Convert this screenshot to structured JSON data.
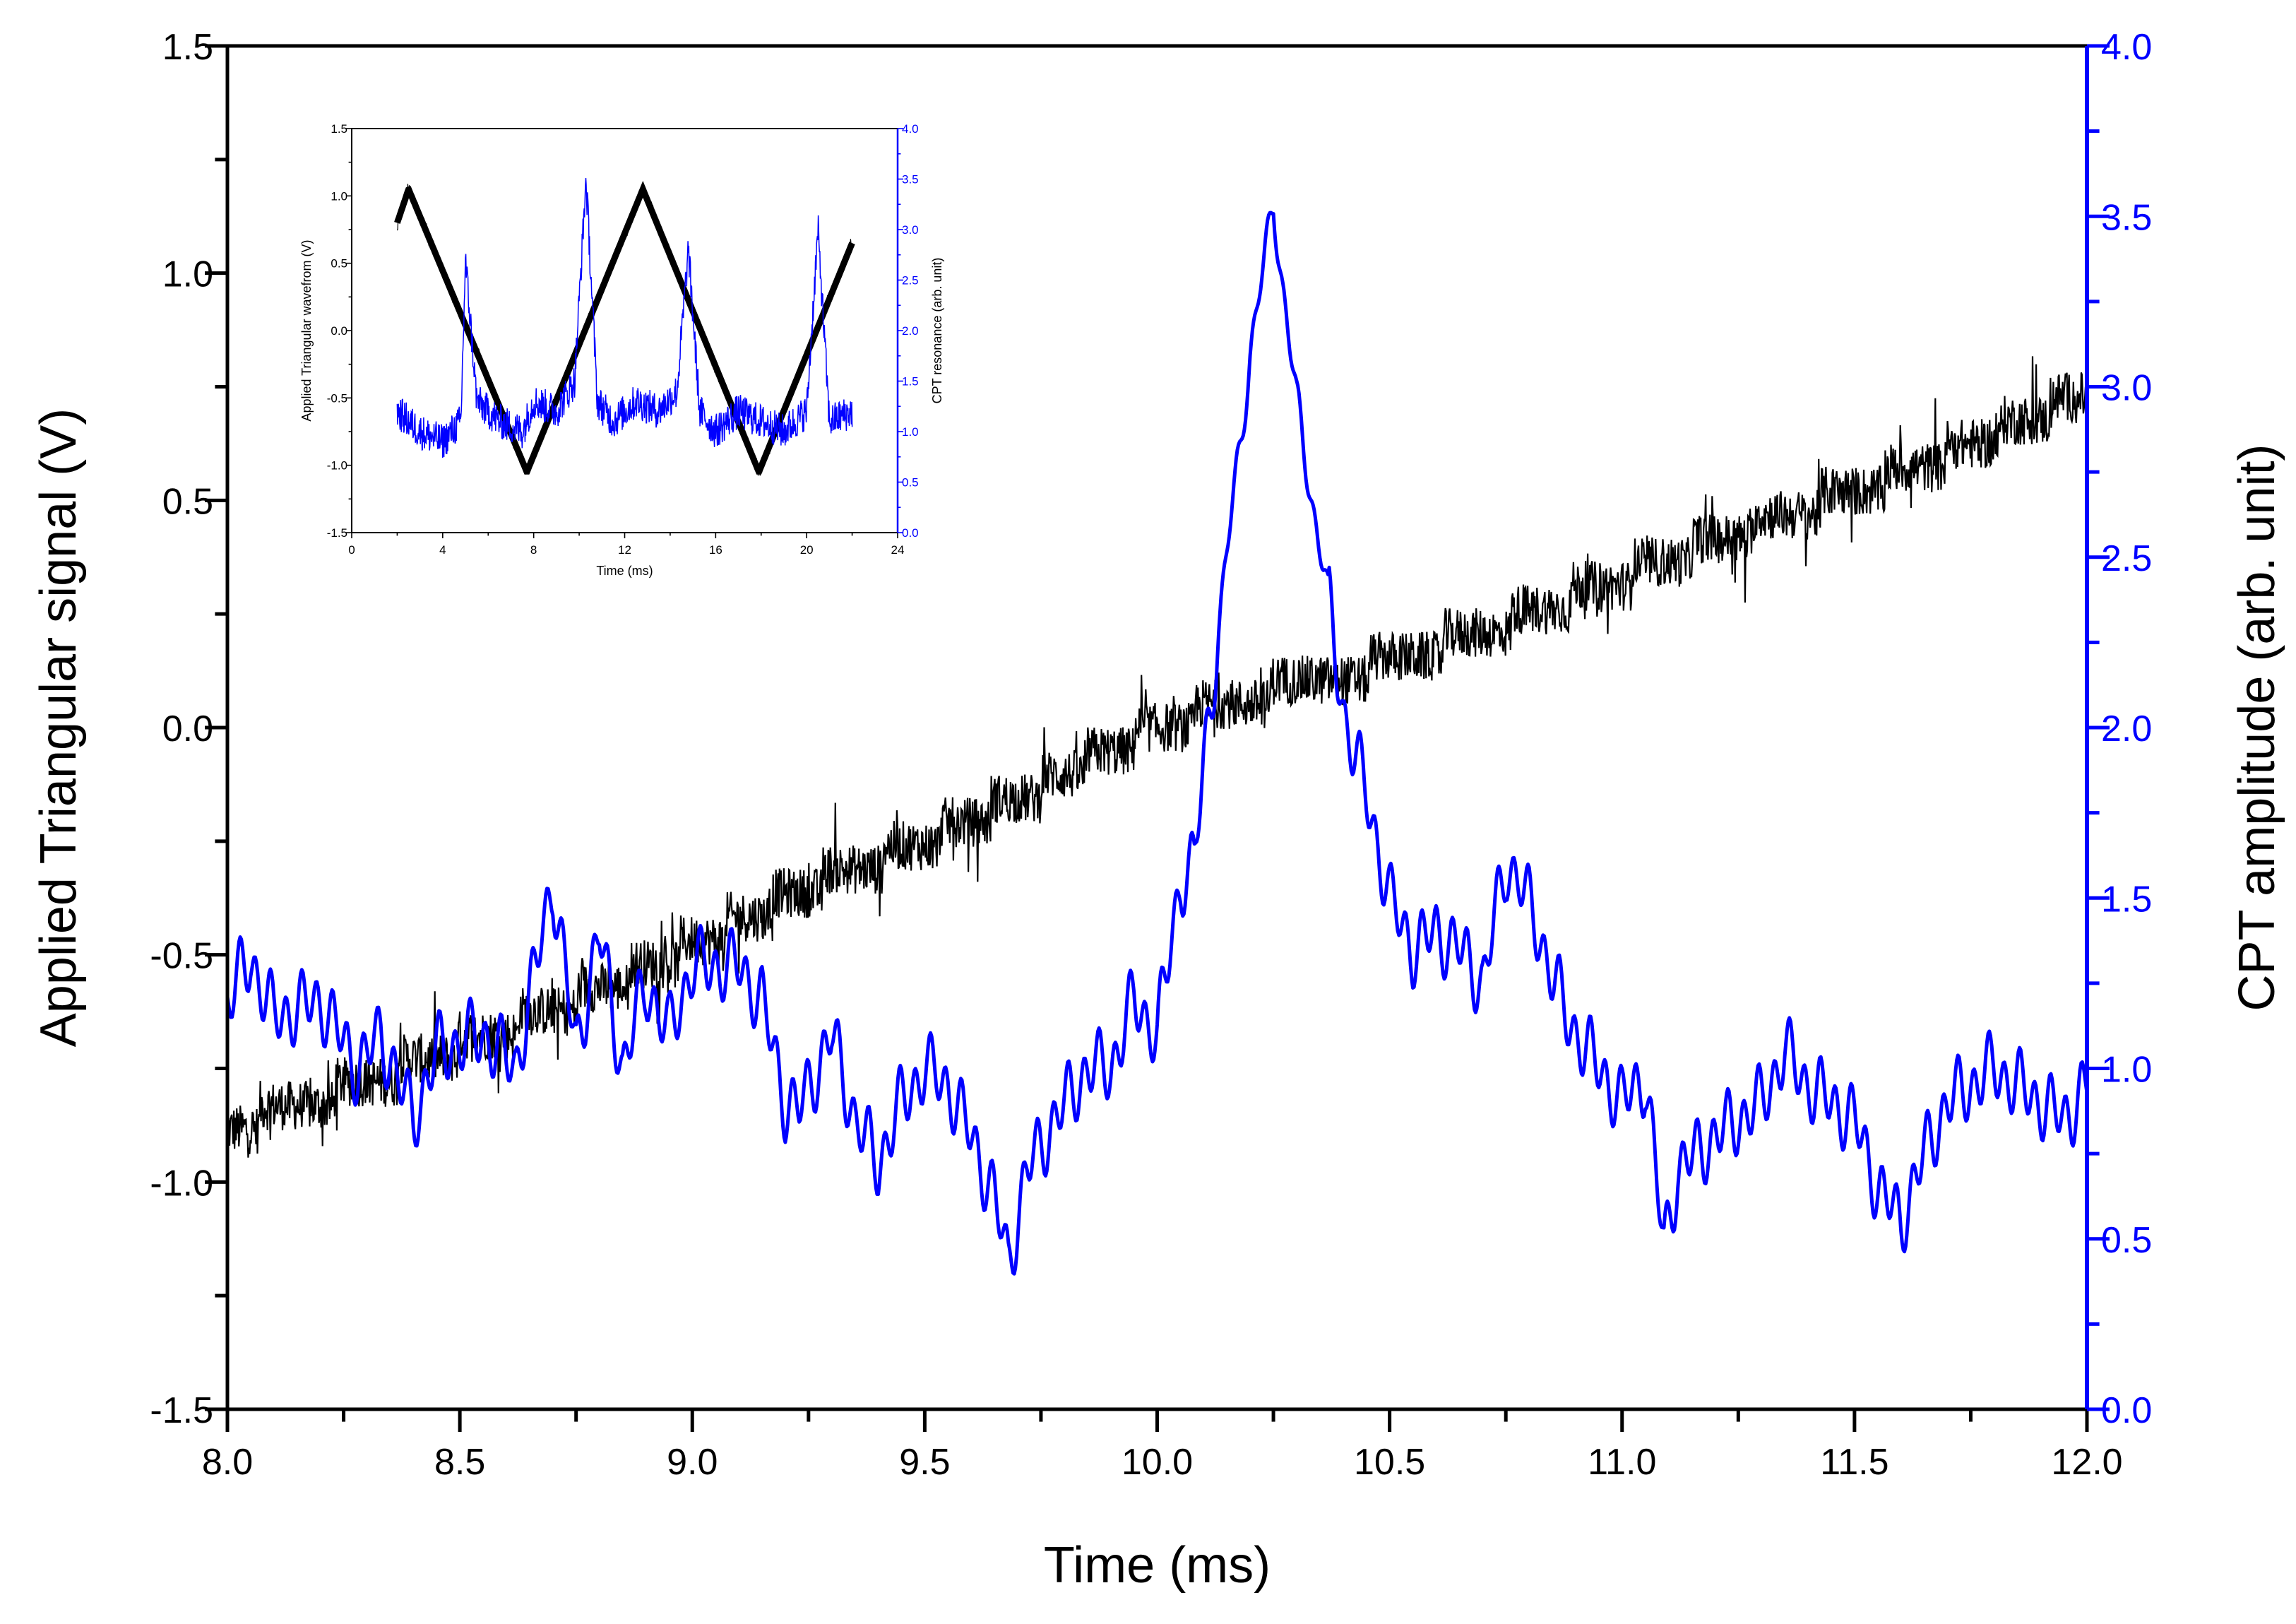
{
  "colors": {
    "black_series": "#000000",
    "blue_series": "#0000ff",
    "axis": "#000000",
    "right_axis": "#0000ff",
    "background": "#ffffff"
  },
  "chart_data": [
    {
      "id": "main",
      "type": "line",
      "title": "",
      "xlabel": "Time (ms)",
      "ylabel_left": "Applied Triangular signal (V)",
      "ylabel_right": "CPT amplitude (arb. unit)",
      "xlim": [
        8.0,
        12.0
      ],
      "ylim_left": [
        -1.5,
        1.5
      ],
      "ylim_right": [
        0.0,
        4.0
      ],
      "x_ticks": [
        "8.0",
        "8.5",
        "9.0",
        "9.5",
        "10.0",
        "10.5",
        "11.0",
        "11.5",
        "12.0"
      ],
      "y_left_ticks": [
        "-1.5",
        "-1.0",
        "-0.5",
        "0.0",
        "0.5",
        "1.0",
        "1.5"
      ],
      "y_right_ticks": [
        "0.0",
        "0.5",
        "1.0",
        "1.5",
        "2.0",
        "2.5",
        "3.0",
        "3.5",
        "4.0"
      ],
      "grid": false,
      "series": [
        {
          "name": "Applied triangular signal",
          "axis": "left",
          "color": "#000000",
          "x": [
            8.0,
            8.25,
            8.5,
            8.75,
            9.0,
            9.25,
            9.5,
            9.75,
            10.0,
            10.25,
            10.5,
            10.75,
            11.0,
            11.25,
            11.5,
            11.75,
            12.0
          ],
          "y": [
            -0.88,
            -0.8,
            -0.7,
            -0.6,
            -0.48,
            -0.35,
            -0.25,
            -0.13,
            0.0,
            0.08,
            0.14,
            0.23,
            0.33,
            0.43,
            0.52,
            0.62,
            0.74
          ]
        },
        {
          "name": "CPT amplitude",
          "axis": "right",
          "color": "#0000ff",
          "x": [
            8.0,
            8.05,
            8.1,
            8.2,
            8.28,
            8.33,
            8.4,
            8.45,
            8.55,
            8.62,
            8.7,
            8.75,
            8.8,
            8.85,
            8.9,
            8.95,
            9.0,
            9.05,
            9.1,
            9.15,
            9.2,
            9.23,
            9.3,
            9.35,
            9.4,
            9.45,
            9.5,
            9.55,
            9.6,
            9.65,
            9.68,
            9.72,
            9.78,
            9.85,
            9.9,
            9.95,
            10.0,
            10.05,
            10.08,
            10.1,
            10.15,
            10.2,
            10.23,
            10.25,
            10.27,
            10.3,
            10.33,
            10.36,
            10.4,
            10.45,
            10.5,
            10.55,
            10.6,
            10.65,
            10.7,
            10.75,
            10.78,
            10.82,
            10.88,
            10.95,
            11.0,
            11.05,
            11.09,
            11.12,
            11.2,
            11.3,
            11.35,
            11.4,
            11.5,
            11.55,
            11.6,
            11.65,
            11.7,
            11.8,
            11.85,
            11.9,
            11.95,
            12.0
          ],
          "y": [
            1.2,
            1.32,
            1.15,
            1.2,
            1.0,
            1.1,
            0.85,
            1.05,
            1.1,
            1.0,
            1.55,
            1.05,
            1.4,
            1.0,
            1.25,
            1.1,
            1.3,
            1.3,
            1.3,
            1.2,
            0.9,
            0.88,
            1.1,
            0.85,
            0.72,
            0.9,
            1.0,
            0.95,
            0.8,
            0.62,
            0.43,
            0.7,
            0.85,
            1.0,
            1.0,
            1.2,
            1.1,
            1.55,
            1.6,
            1.9,
            2.5,
            3.1,
            3.35,
            3.55,
            3.3,
            2.95,
            2.7,
            2.45,
            2.05,
            1.8,
            1.5,
            1.35,
            1.4,
            1.35,
            1.25,
            1.6,
            1.55,
            1.4,
            1.15,
            1.0,
            0.9,
            0.98,
            0.48,
            0.7,
            0.8,
            0.9,
            1.05,
            0.95,
            0.85,
            0.65,
            0.55,
            0.75,
            0.9,
            1.0,
            0.95,
            0.9,
            0.85,
            0.95
          ]
        }
      ]
    },
    {
      "id": "inset",
      "type": "line",
      "title": "",
      "xlabel": "Time (ms)",
      "ylabel_left": "Applied Triangular wavefrom (V)",
      "ylabel_right": "CPT resonance  (arb. unit)",
      "xlim": [
        0,
        24
      ],
      "ylim_left": [
        -1.5,
        1.5
      ],
      "ylim_right": [
        0.0,
        4.0
      ],
      "x_ticks": [
        "0",
        "4",
        "8",
        "12",
        "16",
        "20",
        "24"
      ],
      "y_left_ticks": [
        "-1.5",
        "-1.0",
        "-0.5",
        "0.0",
        "0.5",
        "1.0",
        "1.5"
      ],
      "y_right_ticks": [
        "0.0",
        "0.5",
        "1.0",
        "1.5",
        "2.0",
        "2.5",
        "3.0",
        "3.5",
        "4.0"
      ],
      "grid": false,
      "series": [
        {
          "name": "Applied triangular waveform",
          "axis": "left",
          "color": "#000000",
          "x": [
            2.0,
            2.5,
            7.7,
            12.8,
            17.9,
            22.0
          ],
          "y": [
            0.8,
            1.05,
            -1.05,
            1.05,
            -1.05,
            0.65
          ]
        },
        {
          "name": "CPT resonance",
          "axis": "right",
          "color": "#0000ff",
          "x": [
            2.0,
            3.0,
            4.0,
            4.8,
            5.0,
            5.5,
            6.5,
            7.5,
            8.0,
            9.0,
            9.8,
            10.3,
            10.8,
            11.5,
            12.5,
            13.5,
            14.3,
            14.8,
            15.3,
            16.0,
            17.0,
            18.0,
            19.0,
            20.0,
            20.5,
            21.0,
            22.0
          ],
          "y": [
            1.2,
            1.0,
            0.9,
            1.1,
            2.7,
            1.3,
            1.1,
            1.0,
            1.3,
            1.2,
            1.5,
            3.5,
            1.3,
            1.1,
            1.3,
            1.2,
            1.4,
            2.8,
            1.2,
            1.0,
            1.2,
            1.1,
            1.0,
            1.2,
            3.0,
            1.1,
            1.2
          ]
        }
      ]
    }
  ]
}
